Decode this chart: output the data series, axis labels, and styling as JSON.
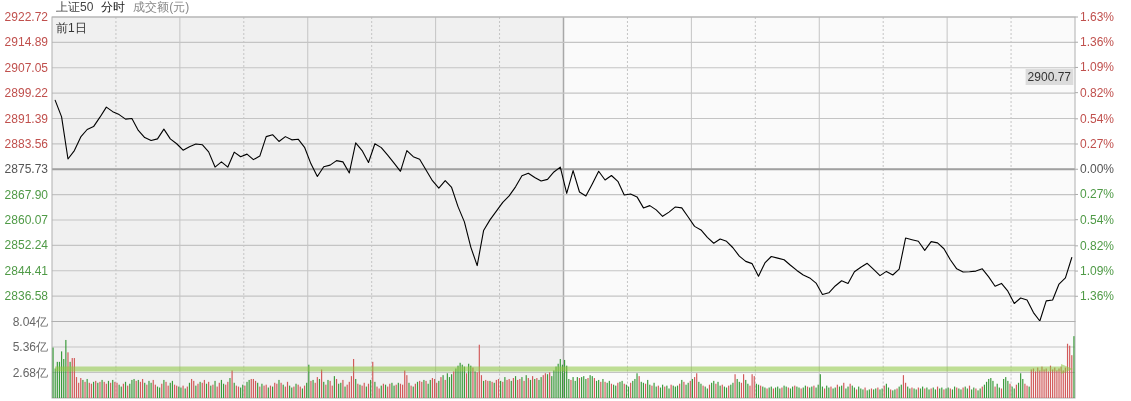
{
  "chart_data": [
    {
      "type": "line",
      "title": "上证50",
      "subtitle": "分时",
      "categories": [
        null,
        null,
        null,
        null,
        null,
        null,
        null,
        null,
        null,
        null,
        null,
        null,
        null,
        null,
        null,
        null,
        null,
        null,
        null,
        null,
        null,
        null,
        null,
        null,
        null,
        null,
        null,
        null,
        null,
        null,
        null,
        null,
        null,
        null,
        null,
        null,
        null,
        null,
        null,
        null,
        null,
        null,
        null,
        null,
        null,
        null,
        null,
        null,
        null,
        null,
        null,
        null,
        null,
        null,
        null,
        null,
        null,
        null,
        null,
        null,
        null,
        null,
        null,
        null,
        null,
        null,
        null,
        null,
        null,
        null,
        null,
        null,
        null,
        null,
        null,
        null,
        null,
        null,
        null,
        null,
        null,
        null,
        null,
        null,
        null,
        null,
        null,
        null,
        null,
        null,
        null,
        null,
        null,
        null,
        null,
        null,
        null,
        null,
        null,
        null,
        null,
        null,
        null,
        null,
        null,
        null,
        null,
        null,
        null,
        null,
        null,
        null,
        null,
        null,
        null,
        null,
        null,
        null,
        null,
        null,
        null,
        null,
        null,
        null,
        null,
        null,
        null,
        null,
        null,
        null,
        null,
        null,
        null,
        null,
        null,
        null,
        null,
        null,
        null,
        null,
        null,
        null,
        null,
        null,
        null,
        null,
        null,
        null,
        null,
        null,
        null,
        null,
        null,
        null,
        null,
        null,
        null,
        null,
        null,
        null
      ],
      "ylim": [
        2828.74,
        2922.72
      ],
      "yticks": [
        2922.72,
        2914.89,
        2907.05,
        2899.22,
        2891.39,
        2883.56,
        2875.73,
        {
          "value": 2867.9,
          "label": "2867.90"
        },
        2860.07,
        2852.24,
        2844.41,
        2836.58
      ],
      "y2lim": [
        -1.63,
        1.63
      ],
      "y2ticks": [
        {
          "value": 1.63,
          "label": "1.63%"
        },
        {
          "value": 1.36,
          "label": "1.36%"
        },
        {
          "value": 1.09,
          "label": "1.09%"
        },
        {
          "value": 0.82,
          "label": "0.82%"
        },
        {
          "value": 0.54,
          "label": "0.54%"
        },
        {
          "value": 0.27,
          "label": "0.27%"
        },
        {
          "value": 0,
          "label": "0.00%"
        },
        {
          "value": -0.27,
          "label": "0.27%"
        },
        {
          "value": -0.54,
          "label": "0.54%"
        },
        {
          "value": -0.82,
          "label": "0.82%"
        },
        {
          "value": -1.09,
          "label": "1.09%"
        },
        {
          "value": -1.36,
          "label": "1.36%"
        }
      ],
      "grid": true,
      "ref_lines": [
        {
          "axis": "y",
          "value": 2875.73,
          "color": "#a0a0a0"
        }
      ],
      "annotations": [
        "成交额(元)",
        "前1日",
        "2900.77"
      ],
      "series": [
        {
          "color": "#000000",
          "values": [
            2897.0,
            2891.9,
            2878.9,
            2881.5,
            2885.7,
            2888.0,
            2888.9,
            2891.8,
            2894.9,
            2893.5,
            2892.6,
            2891.2,
            2891.4,
            2887.7,
            2885.5,
            2884.6,
            2885.1,
            2888.1,
            2885.1,
            2883.6,
            2881.6,
            2882.7,
            2883.5,
            2883.3,
            2881.1,
            2876.4,
            2878.0,
            2876.4,
            2881.0,
            2879.6,
            2880.4,
            2878.7,
            2879.8,
            2885.8,
            2886.4,
            2884.3,
            2885.8,
            2884.8,
            2885.0,
            2882.5,
            2877.4,
            2873.5,
            2876.5,
            2877.0,
            2878.4,
            2878.0,
            2874.6,
            2883.9,
            2881.5,
            2877.8,
            2883.6,
            2882.4,
            2880.1,
            2877.6,
            2875.1,
            2881.5,
            2879.6,
            2878.8,
            2875.5,
            2872.2,
            2869.9,
            2872.2,
            2870.1,
            2864.2,
            2859.5,
            2851.7,
            2846.0,
            2856.8,
            2860.1,
            2862.8,
            2865.5,
            2867.5,
            2870.3,
            2873.7,
            2874.5,
            2873.2,
            2872.1,
            2872.6,
            2874.9,
            2876.4,
            2868.3,
            2875.3,
            2868.7,
            2867.5,
            2871.2,
            2875.1,
            2872.4,
            2873.8,
            2872.0,
            2867.8,
            2868.1,
            2867.2,
            2863.8,
            2864.5,
            2863.2,
            2861.2,
            2862.5,
            2864.1,
            2863.8,
            2861.0,
            2858.1,
            2857.0,
            2854.7,
            2852.9,
            2854.2,
            2853.5,
            2851.5,
            2848.9,
            2847.3,
            2846.6,
            2842.7,
            2846.8,
            2848.8,
            2848.3,
            2847.8,
            2846.1,
            2844.5,
            2843.1,
            2842.2,
            2840.6,
            2837.1,
            2837.6,
            2839.7,
            2841.3,
            2840.5,
            2844.1,
            2845.5,
            2846.7,
            2844.8,
            2842.9,
            2844.2,
            2843.1,
            2844.9,
            2854.5,
            2854.0,
            2853.5,
            2850.7,
            2853.4,
            2853.0,
            2851.2,
            2847.8,
            2845.0,
            2844.0,
            2844.1,
            2844.3,
            2845.0,
            2842.5,
            2839.6,
            2840.5,
            2838.1,
            2834.3,
            2836.0,
            2835.4,
            2831.5,
            2828.9,
            2835.1,
            2835.4,
            2840.3,
            2842.2,
            2848.5
          ]
        }
      ]
    },
    {
      "type": "bar",
      "categories": [
        null,
        null,
        null,
        null,
        null,
        null,
        null,
        null,
        null,
        null,
        null,
        null,
        null,
        null,
        null,
        null,
        null,
        null,
        null,
        null,
        null,
        null,
        null,
        null,
        null,
        null,
        null,
        null,
        null,
        null,
        null,
        null,
        null,
        null,
        null,
        null,
        null,
        null,
        null,
        null,
        null,
        null,
        null,
        null,
        null,
        null,
        null,
        null,
        null,
        null,
        null,
        null,
        null,
        null,
        null,
        null,
        null,
        null,
        null,
        null,
        null,
        null,
        null,
        null,
        null,
        null,
        null,
        null,
        null,
        null,
        null,
        null,
        null,
        null,
        null,
        null,
        null,
        null,
        null,
        null,
        null,
        null,
        null,
        null,
        null,
        null,
        null,
        null,
        null,
        null,
        null,
        null,
        null,
        null,
        null,
        null,
        null,
        null,
        null,
        null,
        null,
        null,
        null,
        null,
        null,
        null,
        null,
        null,
        null,
        null,
        null,
        null,
        null,
        null,
        null,
        null,
        null,
        null,
        null,
        null,
        null,
        null,
        null,
        null,
        null,
        null,
        null,
        null,
        null,
        null,
        null,
        null,
        null,
        null,
        null,
        null,
        null,
        null,
        null,
        null,
        null,
        null,
        null,
        null,
        null,
        null,
        null,
        null,
        null,
        null,
        null,
        null,
        null,
        null,
        null,
        null,
        null,
        null,
        null,
        null,
        null,
        null,
        null,
        null,
        null,
        null,
        null,
        null,
        null,
        null,
        null,
        null,
        null,
        null,
        null,
        null,
        null,
        null,
        null,
        null,
        null,
        null,
        null,
        null,
        null,
        null,
        null,
        null,
        null,
        null,
        null,
        null,
        null,
        null,
        null,
        null,
        null,
        null,
        null,
        null,
        null,
        null,
        null,
        null,
        null,
        null,
        null,
        null,
        null,
        null,
        null,
        null,
        null,
        null,
        null,
        null,
        null,
        null,
        null,
        null,
        null,
        null,
        null,
        null,
        null,
        null,
        null,
        null,
        null,
        null,
        null,
        null,
        null,
        null,
        null,
        null,
        null,
        null,
        null,
        null,
        null,
        null,
        null,
        null,
        null,
        null,
        null,
        null,
        null,
        null,
        null,
        null,
        null,
        null,
        null,
        null,
        null,
        null,
        null,
        null,
        null,
        null,
        null,
        null,
        null,
        null,
        null,
        null,
        null,
        null,
        null,
        null,
        null,
        null,
        null,
        null,
        null,
        null,
        null,
        null,
        null,
        null,
        null,
        null,
        null,
        null,
        null,
        null,
        null,
        null,
        null,
        null,
        null,
        null,
        null,
        null,
        null,
        null,
        null,
        null,
        null,
        null,
        null,
        null,
        null,
        null,
        null,
        null,
        null,
        null,
        null,
        null,
        null,
        null,
        null,
        null,
        null,
        null,
        null,
        null,
        null,
        null,
        null,
        null,
        null,
        null,
        null,
        null,
        null,
        null,
        null,
        null,
        null,
        null,
        null,
        null,
        null,
        null,
        null,
        null,
        null,
        null,
        null,
        null,
        null,
        null,
        null,
        null,
        null,
        null,
        null,
        null,
        null,
        null,
        null,
        null,
        null,
        null,
        null,
        null,
        null,
        null,
        null,
        null,
        null,
        null,
        null,
        null,
        null,
        null,
        null,
        null,
        null,
        null,
        null,
        null,
        null,
        null,
        null,
        null,
        null,
        null,
        null,
        null,
        null,
        null,
        null,
        null,
        null,
        null,
        null,
        null,
        null,
        null,
        null,
        null,
        null,
        null,
        null,
        null,
        null,
        null,
        null,
        null,
        null,
        null,
        null,
        null,
        null,
        null,
        null,
        null,
        null,
        null,
        null,
        null,
        null,
        null,
        null,
        null,
        null,
        null,
        null,
        null,
        null,
        null,
        null,
        null,
        null,
        null,
        null,
        null,
        null,
        null,
        null,
        null,
        null,
        null,
        null,
        null,
        null,
        null,
        null,
        null,
        null,
        null,
        null,
        null,
        null,
        null,
        null,
        null,
        null,
        null,
        null,
        null,
        null,
        null,
        null,
        null,
        null,
        null,
        null,
        null,
        null,
        null,
        null,
        null,
        null,
        null,
        null,
        null,
        null,
        null,
        null,
        null,
        null,
        null,
        null,
        null
      ],
      "ylim": [
        0,
        8.04
      ],
      "yticks": [
        {
          "value": 2.68,
          "label": "2.68亿"
        },
        {
          "value": 5.36,
          "label": "5.36亿"
        },
        {
          "value": 8.04,
          "label": "8.04亿"
        }
      ],
      "grid": true,
      "values": [
        5.3,
        3.1,
        3.8,
        3.8,
        4.9,
        4.1,
        6.1,
        4.8,
        3.8,
        4.2,
        4.2,
        2.2,
        1.6,
        2.1,
        1.9,
        1.7,
        2.0,
        1.6,
        1.5,
        1.7,
        1.8,
        1.6,
        1.7,
        1.9,
        1.7,
        1.5,
        1.8,
        1.6,
        1.9,
        1.7,
        1.6,
        1.4,
        1.2,
        1.5,
        1.7,
        1.3,
        1.5,
        1.9,
        2.0,
        1.8,
        1.9,
        1.7,
        2.0,
        1.6,
        1.4,
        1.8,
        1.6,
        1.9,
        1.4,
        1.2,
        1.1,
        1.5,
        1.9,
        1.7,
        1.3,
        1.6,
        1.8,
        1.4,
        1.3,
        1.2,
        1.1,
        1.3,
        1.0,
        1.2,
        1.6,
        2.0,
        1.8,
        1.3,
        1.5,
        1.7,
        1.6,
        1.9,
        1.5,
        1.7,
        1.3,
        1.4,
        1.8,
        1.2,
        1.6,
        1.9,
        1.5,
        1.4,
        1.7,
        2.1,
        2.9,
        1.6,
        1.3,
        1.2,
        1.1,
        1.4,
        1.3,
        1.7,
        1.9,
        2.0,
        2.0,
        1.8,
        1.6,
        1.2,
        1.5,
        1.3,
        1.4,
        1.1,
        1.3,
        1.2,
        1.6,
        1.5,
        1.9,
        1.6,
        1.4,
        1.2,
        1.7,
        1.3,
        1.1,
        1.2,
        1.5,
        1.4,
        1.2,
        1.0,
        1.3,
        1.6,
        3.5,
        1.8,
        1.9,
        1.6,
        2.2,
        2.0,
        3.0,
        1.7,
        1.4,
        1.9,
        1.8,
        1.3,
        2.3,
        2.0,
        1.5,
        1.6,
        1.9,
        1.2,
        1.4,
        1.7,
        2.3,
        4.1,
        2.0,
        1.5,
        1.4,
        1.3,
        1.6,
        1.2,
        1.5,
        1.9,
        3.8,
        1.7,
        1.2,
        1.0,
        1.3,
        1.5,
        1.4,
        1.2,
        1.5,
        1.6,
        1.3,
        1.4,
        1.6,
        1.5,
        1.4,
        2.9,
        2.4,
        1.6,
        1.3,
        1.2,
        1.5,
        1.7,
        1.8,
        1.7,
        1.9,
        1.8,
        1.5,
        1.9,
        2.1,
        2.0,
        1.6,
        1.8,
        2.2,
        2.4,
        1.9,
        2.6,
        2.2,
        2.5,
        2.8,
        3.1,
        3.4,
        3.7,
        3.5,
        3.3,
        2.6,
        3.6,
        3.4,
        3.2,
        2.8,
        2.7,
        5.6,
        2.4,
        1.8,
        1.9,
        1.8,
        1.8,
        1.7,
        1.6,
        1.9,
        2.0,
        1.8,
        1.7,
        2.2,
        1.9,
        2.0,
        1.8,
        2.1,
        2.3,
        1.9,
        2.0,
        2.2,
        1.8,
        2.4,
        2.1,
        1.9,
        2.3,
        2.0,
        2.1,
        1.9,
        2.2,
        2.4,
        2.6,
        2.5,
        2.7,
        2.3,
        2.9,
        3.3,
        3.6,
        4.1,
        3.5,
        4.0,
        3.4,
        2.0,
        1.9,
        2.2,
        1.8,
        2.2,
        2.1,
        2.2,
        2.3,
        2.0,
        2.1,
        2.4,
        2.3,
        2.1,
        1.8,
        1.9,
        1.7,
        2.0,
        1.7,
        1.6,
        1.8,
        1.5,
        1.4,
        1.3,
        1.6,
        1.7,
        1.8,
        1.5,
        1.4,
        1.2,
        1.6,
        1.8,
        2.0,
        2.6,
        2.3,
        1.7,
        1.6,
        1.5,
        1.9,
        1.4,
        1.3,
        1.6,
        1.2,
        1.3,
        1.1,
        1.4,
        1.2,
        1.3,
        1.0,
        1.4,
        1.3,
        1.2,
        1.3,
        1.5,
        1.9,
        1.7,
        1.4,
        1.6,
        1.8,
        2.0,
        2.2,
        2.6,
        1.7,
        1.5,
        1.3,
        1.2,
        1.0,
        1.4,
        1.6,
        1.8,
        1.5,
        1.7,
        1.3,
        1.4,
        1.2,
        1.1,
        1.3,
        1.4,
        1.6,
        2.5,
        2.0,
        1.7,
        1.6,
        2.5,
        1.9,
        1.5,
        1.3,
        2.5,
        2.3,
        1.5,
        1.4,
        1.3,
        1.2,
        1.1,
        1.0,
        1.1,
        1.2,
        1.0,
        1.1,
        1.2,
        1.0,
        1.1,
        1.3,
        1.2,
        1.1,
        1.0,
        1.2,
        1.3,
        1.2,
        1.1,
        1.0,
        1.1,
        1.3,
        1.2,
        1.1,
        1.2,
        1.3,
        1.1,
        1.4,
        2.5,
        1.2,
        1.0,
        1.3,
        1.1,
        1.2,
        1.0,
        1.1,
        1.4,
        1.2,
        1.3,
        1.6,
        1.0,
        1.2,
        1.5,
        1.3,
        1.1,
        0.9,
        1.2,
        1.0,
        0.9,
        1.1,
        0.8,
        0.9,
        1.0,
        0.9,
        1.0,
        1.1,
        0.9,
        1.0,
        1.3,
        1.5,
        1.1,
        0.9,
        0.8,
        0.9,
        1.0,
        1.2,
        1.4,
        2.4,
        1.6,
        1.2,
        1.0,
        1.1,
        1.0,
        0.9,
        1.1,
        1.0,
        1.2,
        1.0,
        1.1,
        0.9,
        1.0,
        1.1,
        0.9,
        1.2,
        1.0,
        1.1,
        0.9,
        1.0,
        1.1,
        1.0,
        0.9,
        1.2,
        1.1,
        1.0,
        0.9,
        1.1,
        1.2,
        1.0,
        1.3,
        0.9,
        1.1,
        1.0,
        0.8,
        1.0,
        1.2,
        1.4,
        1.7,
        2.0,
        2.1,
        1.8,
        1.2,
        1.5,
        1.1,
        1.0,
        2.0,
        2.2,
        1.8,
        1.5,
        1.2,
        1.0,
        1.4,
        1.6,
        2.6,
        2.0,
        1.5,
        1.3,
        1.2,
        3.0,
        3.1,
        2.8,
        3.2,
        2.9,
        3.3,
        3.0,
        3.1,
        2.8,
        3.4,
        3.0,
        3.2,
        2.9,
        3.1,
        3.3,
        2.9,
        3.2,
        5.7,
        5.5,
        4.5,
        6.5
      ],
      "colors": [
        "#3a9a3a",
        "#3a9a3a",
        "#3a9a3a",
        "#3a9a3a",
        "#3a9a3a",
        "#3a9a3a",
        "#3a9a3a",
        "#d25a5a",
        "#3a9a3a",
        "#d25a5a",
        "#d25a5a",
        "#d25a5a",
        "#d25a5a",
        "#d25a5a",
        "#3a9a3a",
        "#d25a5a",
        "#3a9a3a",
        "#d25a5a",
        "#d25a5a",
        "#3a9a3a",
        "#d25a5a",
        "#3a9a3a",
        "#d25a5a",
        "#3a9a3a",
        "#d25a5a",
        "#d25a5a",
        "#3a9a3a",
        "#d25a5a",
        "#3a9a3a",
        "#d25a5a",
        "#d25a5a",
        "#3a9a3a",
        "#3a9a3a",
        "#d25a5a",
        "#3a9a3a",
        "#d25a5a",
        "#3a9a3a",
        "#3a9a3a",
        "#3a9a3a",
        "#d25a5a",
        "#3a9a3a",
        "#d25a5a",
        "#d25a5a",
        "#3a9a3a",
        "#d25a5a",
        "#3a9a3a",
        "#3a9a3a",
        "#d25a5a",
        "#d25a5a",
        "#3a9a3a",
        "#3a9a3a",
        "#d25a5a",
        "#3a9a3a",
        "#d25a5a",
        "#d25a5a",
        "#3a9a3a",
        "#3a9a3a",
        "#d25a5a",
        "#d25a5a",
        "#3a9a3a",
        "#3a9a3a",
        "#d25a5a",
        "#3a9a3a",
        "#d25a5a",
        "#3a9a3a",
        "#d25a5a",
        "#d25a5a",
        "#3a9a3a",
        "#d25a5a",
        "#3a9a3a",
        "#d25a5a",
        "#d25a5a",
        "#3a9a3a",
        "#d25a5a",
        "#3a9a3a",
        "#d25a5a",
        "#3a9a3a",
        "#d25a5a",
        "#d25a5a",
        "#3a9a3a",
        "#3a9a3a",
        "#d25a5a",
        "#d25a5a",
        "#3a9a3a",
        "#d25a5a",
        "#3a9a3a",
        "#d25a5a",
        "#d25a5a",
        "#3a9a3a",
        "#3a9a3a",
        "#d25a5a",
        "#3a9a3a",
        "#3a9a3a",
        "#d25a5a",
        "#d25a5a",
        "#d25a5a",
        "#3a9a3a",
        "#d25a5a",
        "#3a9a3a",
        "#d25a5a",
        "#d25a5a",
        "#3a9a3a",
        "#d25a5a",
        "#3a9a3a",
        "#d25a5a",
        "#d25a5a",
        "#3a9a3a",
        "#d25a5a",
        "#3a9a3a",
        "#d25a5a",
        "#d25a5a",
        "#3a9a3a",
        "#3a9a3a",
        "#d25a5a",
        "#3a9a3a",
        "#d25a5a",
        "#d25a5a",
        "#3a9a3a",
        "#d25a5a",
        "#3a9a3a",
        "#3a9a3a",
        "#d25a5a",
        "#3a9a3a",
        "#d25a5a",
        "#d25a5a",
        "#3a9a3a",
        "#d25a5a",
        "#3a9a3a",
        "#d25a5a",
        "#3a9a3a",
        "#d25a5a",
        "#d25a5a",
        "#3a9a3a",
        "#d25a5a",
        "#3a9a3a",
        "#3a9a3a",
        "#d25a5a",
        "#3a9a3a",
        "#d25a5a",
        "#d25a5a",
        "#d25a5a",
        "#d25a5a",
        "#3a9a3a",
        "#d25a5a",
        "#3a9a3a",
        "#d25a5a",
        "#d25a5a",
        "#3a9a3a",
        "#d25a5a",
        "#3a9a3a",
        "#d25a5a",
        "#3a9a3a",
        "#d25a5a",
        "#d25a5a",
        "#3a9a3a",
        "#d25a5a",
        "#3a9a3a",
        "#d25a5a",
        "#d25a5a",
        "#3a9a3a",
        "#3a9a3a",
        "#d25a5a",
        "#3a9a3a",
        "#d25a5a",
        "#d25a5a",
        "#d25a5a",
        "#d25a5a",
        "#3a9a3a",
        "#d25a5a",
        "#3a9a3a",
        "#d25a5a",
        "#3a9a3a",
        "#d25a5a",
        "#d25a5a",
        "#3a9a3a",
        "#d25a5a",
        "#3a9a3a",
        "#3a9a3a",
        "#d25a5a",
        "#d25a5a",
        "#d25a5a",
        "#3a9a3a",
        "#d25a5a",
        "#3a9a3a",
        "#d25a5a",
        "#3a9a3a",
        "#3a9a3a",
        "#3a9a3a",
        "#d25a5a",
        "#3a9a3a",
        "#3a9a3a",
        "#3a9a3a",
        "#3a9a3a",
        "#3a9a3a",
        "#d25a5a",
        "#3a9a3a",
        "#3a9a3a",
        "#d25a5a",
        "#3a9a3a",
        "#d25a5a",
        "#d25a5a",
        "#d25a5a",
        "#3a9a3a",
        "#d25a5a",
        "#d25a5a",
        "#3a9a3a",
        "#d25a5a",
        "#3a9a3a",
        "#d25a5a",
        "#d25a5a",
        "#3a9a3a",
        "#d25a5a",
        "#3a9a3a",
        "#d25a5a",
        "#d25a5a",
        "#3a9a3a",
        "#d25a5a",
        "#3a9a3a",
        "#d25a5a",
        "#d25a5a",
        "#3a9a3a",
        "#d25a5a",
        "#3a9a3a",
        "#d25a5a",
        "#3a9a3a",
        "#d25a5a",
        "#3a9a3a",
        "#d25a5a",
        "#3a9a3a",
        "#3a9a3a",
        "#d25a5a",
        "#d25a5a",
        "#3a9a3a",
        "#d25a5a",
        "#3a9a3a",
        "#3a9a3a",
        "#3a9a3a",
        "#3a9a3a",
        "#3a9a3a",
        "#3a9a3a",
        "#3a9a3a",
        "#3a9a3a",
        "#3a9a3a",
        "#d25a5a",
        "#3a9a3a",
        "#3a9a3a",
        "#3a9a3a",
        "#d25a5a",
        "#3a9a3a",
        "#3a9a3a",
        "#3a9a3a",
        "#d25a5a",
        "#3a9a3a",
        "#3a9a3a",
        "#d25a5a",
        "#3a9a3a",
        "#3a9a3a",
        "#d25a5a",
        "#3a9a3a",
        "#d25a5a",
        "#3a9a3a",
        "#3a9a3a",
        "#d25a5a",
        "#3a9a3a",
        "#3a9a3a",
        "#d25a5a",
        "#3a9a3a",
        "#3a9a3a",
        "#d25a5a",
        "#3a9a3a",
        "#3a9a3a",
        "#d25a5a",
        "#3a9a3a",
        "#3a9a3a",
        "#3a9a3a",
        "#d25a5a",
        "#3a9a3a",
        "#3a9a3a",
        "#d25a5a",
        "#3a9a3a",
        "#3a9a3a",
        "#d25a5a",
        "#3a9a3a",
        "#3a9a3a",
        "#d25a5a",
        "#3a9a3a",
        "#3a9a3a",
        "#d25a5a",
        "#3a9a3a",
        "#3a9a3a",
        "#d25a5a",
        "#3a9a3a",
        "#3a9a3a",
        "#3a9a3a",
        "#d25a5a",
        "#3a9a3a",
        "#d25a5a",
        "#3a9a3a",
        "#3a9a3a",
        "#d25a5a",
        "#3a9a3a",
        "#d25a5a",
        "#d25a5a",
        "#3a9a3a",
        "#3a9a3a",
        "#d25a5a",
        "#3a9a3a",
        "#3a9a3a",
        "#d25a5a",
        "#3a9a3a",
        "#3a9a3a",
        "#d25a5a",
        "#3a9a3a",
        "#3a9a3a",
        "#d25a5a",
        "#3a9a3a",
        "#3a9a3a",
        "#d25a5a",
        "#3a9a3a",
        "#3a9a3a",
        "#d25a5a",
        "#3a9a3a",
        "#3a9a3a",
        "#d25a5a",
        "#d25a5a",
        "#3a9a3a",
        "#3a9a3a",
        "#d25a5a",
        "#d25a5a",
        "#d25a5a",
        "#3a9a3a",
        "#3a9a3a",
        "#d25a5a",
        "#3a9a3a",
        "#3a9a3a",
        "#d25a5a",
        "#3a9a3a",
        "#3a9a3a",
        "#d25a5a",
        "#3a9a3a",
        "#3a9a3a",
        "#3a9a3a",
        "#d25a5a",
        "#3a9a3a",
        "#3a9a3a",
        "#d25a5a",
        "#3a9a3a",
        "#3a9a3a",
        "#d25a5a",
        "#3a9a3a",
        "#3a9a3a",
        "#d25a5a",
        "#3a9a3a",
        "#3a9a3a",
        "#d25a5a",
        "#3a9a3a",
        "#3a9a3a",
        "#d25a5a",
        "#3a9a3a",
        "#3a9a3a",
        "#3a9a3a",
        "#3a9a3a",
        "#d25a5a",
        "#3a9a3a",
        "#3a9a3a",
        "#d25a5a",
        "#3a9a3a",
        "#3a9a3a",
        "#d25a5a",
        "#3a9a3a",
        "#3a9a3a",
        "#d25a5a",
        "#3a9a3a",
        "#3a9a3a",
        "#d25a5a",
        "#3a9a3a",
        "#3a9a3a",
        "#d25a5a",
        "#3a9a3a",
        "#3a9a3a",
        "#3a9a3a",
        "#d25a5a",
        "#3a9a3a",
        "#3a9a3a",
        "#d25a5a",
        "#3a9a3a",
        "#3a9a3a",
        "#d25a5a",
        "#3a9a3a",
        "#3a9a3a",
        "#d25a5a",
        "#3a9a3a",
        "#3a9a3a",
        "#d25a5a",
        "#3a9a3a",
        "#3a9a3a",
        "#d25a5a",
        "#3a9a3a",
        "#3a9a3a",
        "#d25a5a",
        "#d25a5a",
        "#3a9a3a",
        "#3a9a3a",
        "#d25a5a",
        "#3a9a3a",
        "#3a9a3a",
        "#d25a5a",
        "#3a9a3a",
        "#3a9a3a",
        "#d25a5a",
        "#3a9a3a",
        "#3a9a3a",
        "#d25a5a",
        "#3a9a3a",
        "#3a9a3a",
        "#d25a5a",
        "#3a9a3a",
        "#3a9a3a",
        "#d25a5a",
        "#3a9a3a",
        "#3a9a3a",
        "#d25a5a",
        "#3a9a3a",
        "#3a9a3a",
        "#d25a5a",
        "#3a9a3a",
        "#3a9a3a",
        "#d25a5a",
        "#3a9a3a",
        "#3a9a3a",
        "#d25a5a",
        "#3a9a3a",
        "#3a9a3a",
        "#d25a5a",
        "#3a9a3a",
        "#3a9a3a",
        "#d25a5a",
        "#3a9a3a",
        "#3a9a3a",
        "#3a9a3a",
        "#3a9a3a",
        "#3a9a3a",
        "#d25a5a",
        "#3a9a3a",
        "#3a9a3a",
        "#d25a5a",
        "#3a9a3a",
        "#3a9a3a",
        "#3a9a3a",
        "#d25a5a",
        "#3a9a3a",
        "#3a9a3a",
        "#d25a5a",
        "#3a9a3a",
        "#3a9a3a",
        "#3a9a3a",
        "#d25a5a",
        "#d25a5a",
        "#3a9a3a",
        "#d25a5a",
        "#d25a5a",
        "#d25a5a",
        "#d25a5a",
        "#d25a5a",
        "#d25a5a",
        "#d25a5a",
        "#d25a5a",
        "#d25a5a",
        "#d25a5a",
        "#d25a5a",
        "#d25a5a",
        "#d25a5a",
        "#d25a5a",
        "#d25a5a",
        "#d25a5a",
        "#d25a5a",
        "#d25a5a",
        "#d25a5a",
        "#d25a5a",
        "#3a9a3a"
      ]
    }
  ]
}
